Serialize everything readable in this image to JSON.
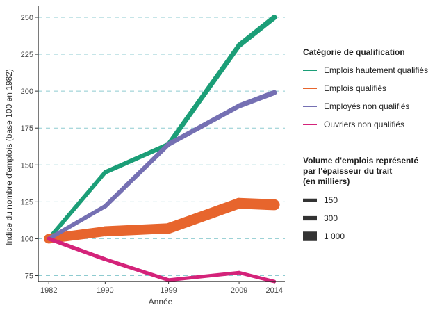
{
  "chart_data": {
    "type": "line",
    "xlabel": "Année",
    "ylabel": "Indice du nombre d'emplois  (base 100 en 1982)",
    "x": [
      1982,
      1990,
      1999,
      2009,
      2014
    ],
    "xlim": [
      1980.5,
      2015.5
    ],
    "ylim": [
      71,
      258
    ],
    "yticks": [
      75,
      100,
      125,
      150,
      175,
      200,
      225,
      250
    ],
    "grid": "horizontal dashed",
    "series": [
      {
        "name": "Emplois hautement qualifiés",
        "color": "#1b9e77",
        "values": [
          100,
          145,
          164,
          231,
          250
        ],
        "widths_thousands": [
          250,
          300,
          340,
          420,
          450
        ]
      },
      {
        "name": "Emplois qualifiés",
        "color": "#e7652d",
        "values": [
          100,
          105,
          107,
          124,
          123
        ],
        "widths_thousands": [
          1000,
          1100,
          1130,
          1200,
          1200
        ]
      },
      {
        "name": "Employés non qualifiés",
        "color": "#7570b3",
        "values": [
          100,
          122,
          164,
          190,
          199
        ],
        "widths_thousands": [
          250,
          300,
          340,
          400,
          420
        ]
      },
      {
        "name": "Ouvriers non qualifiés",
        "color": "#d4237a",
        "values": [
          100,
          86,
          72,
          77,
          71
        ],
        "widths_thousands": [
          260,
          240,
          200,
          190,
          180
        ]
      }
    ]
  },
  "legend_color": {
    "title": "Catégorie de qualification",
    "items": [
      {
        "label": "Emplois hautement qualifiés",
        "color": "#1b9e77"
      },
      {
        "label": "Emplois qualifiés",
        "color": "#e7652d"
      },
      {
        "label": "Employés non qualifiés",
        "color": "#7570b3"
      },
      {
        "label": "Ouvriers non qualifiés",
        "color": "#d4237a"
      }
    ]
  },
  "legend_size": {
    "title_line1": "Volume d'emplois représenté",
    "title_line2": "par l'épaisseur du trait",
    "title_line3": "(en milliers)",
    "items": [
      {
        "label": "150",
        "value": 150
      },
      {
        "label": "300",
        "value": 300
      },
      {
        "label": "1 000",
        "value": 1000
      }
    ]
  }
}
